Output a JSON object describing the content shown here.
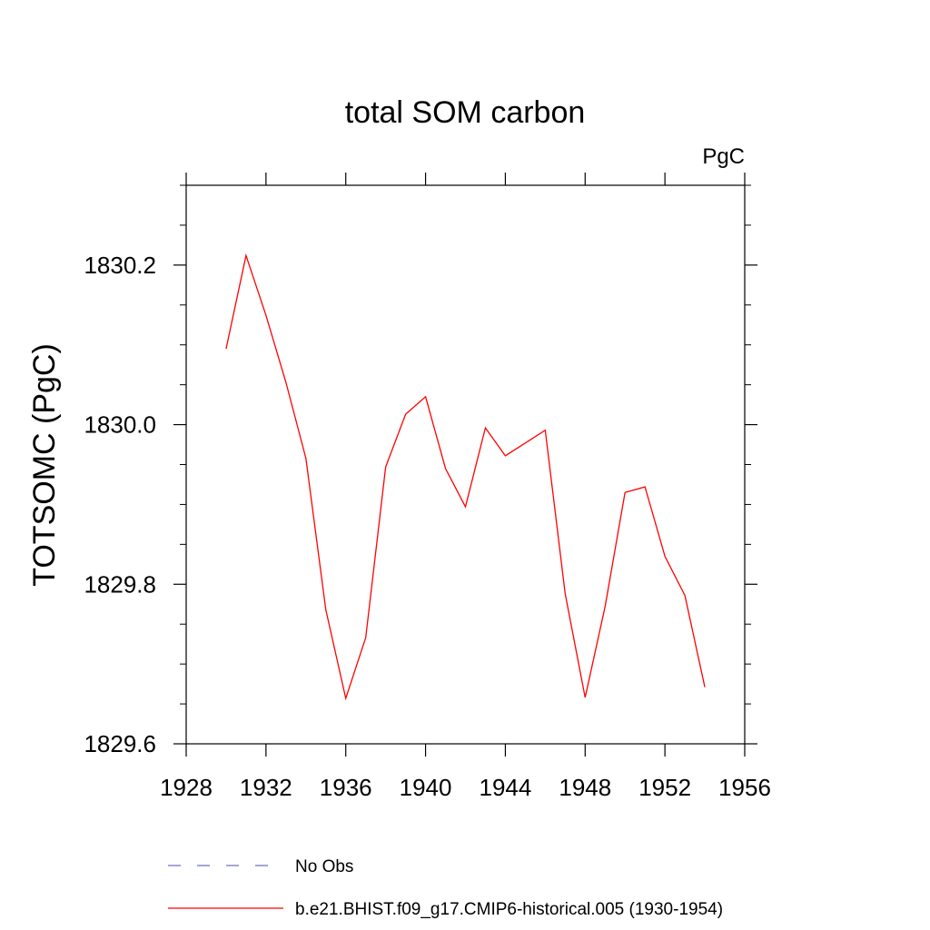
{
  "chart_data": {
    "type": "line",
    "title": "total SOM carbon",
    "units": "PgC",
    "xlabel": "",
    "ylabel": "TOTSOMC  (PgC)",
    "xlim": [
      1928,
      1956
    ],
    "ylim": [
      1829.6,
      1830.3
    ],
    "xticks": [
      1928,
      1932,
      1936,
      1940,
      1944,
      1948,
      1952,
      1956
    ],
    "xtick_labels": [
      "1928",
      "1932",
      "1936",
      "1940",
      "1944",
      "1948",
      "1952",
      "1956"
    ],
    "yticks": [
      1829.6,
      1829.8,
      1830.0,
      1830.2
    ],
    "ytick_labels": [
      "1829.6",
      "1829.8",
      "1830.0",
      "1830.2"
    ],
    "series": [
      {
        "name": "b.e21.BHIST.f09_g17.CMIP6-historical.005 (1930-1954)",
        "color": "#ff0000",
        "style": "solid",
        "x": [
          1930,
          1931,
          1932,
          1933,
          1934,
          1935,
          1936,
          1937,
          1938,
          1939,
          1940,
          1941,
          1942,
          1943,
          1944,
          1945,
          1946,
          1947,
          1948,
          1949,
          1950,
          1951,
          1952,
          1953,
          1954
        ],
        "values": [
          1830.095,
          1830.212,
          1830.137,
          1830.053,
          1829.958,
          1829.768,
          1829.657,
          1829.733,
          1829.947,
          1830.013,
          1830.035,
          1829.945,
          1829.897,
          1829.996,
          1829.961,
          1829.977,
          1829.993,
          1829.788,
          1829.658,
          1829.772,
          1829.915,
          1829.922,
          1829.835,
          1829.786,
          1829.671
        ]
      }
    ],
    "legend": [
      {
        "label": "No Obs",
        "color": "#7070c0",
        "style": "dashed"
      },
      {
        "label": "b.e21.BHIST.f09_g17.CMIP6-historical.005 (1930-1954)",
        "color": "#ff0000",
        "style": "solid"
      }
    ],
    "legend_position": "bottom",
    "grid": false
  }
}
